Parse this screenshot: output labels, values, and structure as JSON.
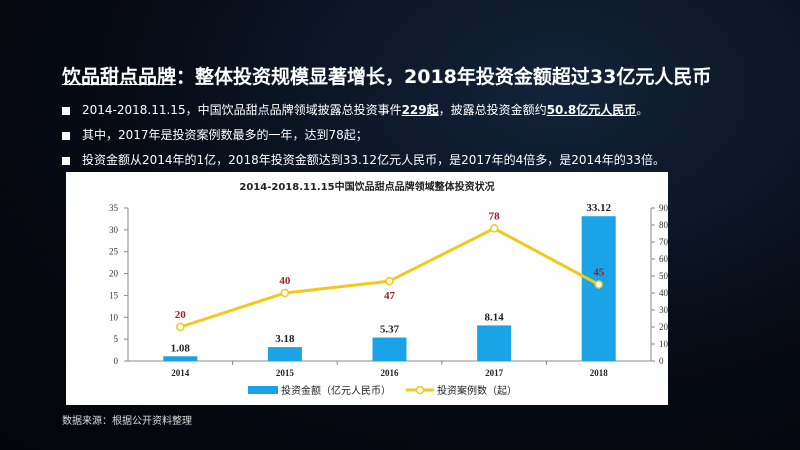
{
  "header": {
    "title_underlined": "饮品甜点品牌",
    "title_rest": "：整体投资规模显著增长，2018年投资金额超过33亿元人民币"
  },
  "bullets": [
    {
      "pre": "2014-2018.11.15，中国饮品甜点品牌领域披露总投资事件",
      "b1": "229起",
      "mid": "，披露总投资金额约",
      "b2": "50.8亿元人民币",
      "post": "。"
    },
    {
      "text": "其中，2017年是投资案例数最多的一年，达到78起；"
    },
    {
      "text": "投资金额从2014年的1亿，2018年投资金额达到33.12亿元人民币，是2017年的4倍多，是2014年的33倍。"
    }
  ],
  "source": "数据来源：根据公开资料整理",
  "chart_data": {
    "type": "bar+line",
    "title": "2014-2018.11.15中国饮品甜点品牌领域整体投资状况",
    "categories": [
      "2014",
      "2015",
      "2016",
      "2017",
      "2018"
    ],
    "series": [
      {
        "name": "投资金额（亿元人民币）",
        "type": "bar",
        "axis": "left",
        "values": [
          1.08,
          3.18,
          5.37,
          8.14,
          33.12
        ],
        "labels": [
          "1.08",
          "3.18",
          "5.37",
          "8.14",
          "33.12"
        ],
        "color": "#1aa3e6"
      },
      {
        "name": "投资案例数（起）",
        "type": "line",
        "axis": "right",
        "values": [
          20,
          40,
          47,
          78,
          45
        ],
        "labels": [
          "20",
          "40",
          "47",
          "78",
          "45"
        ],
        "color": "#f2c81a",
        "label_color": "#a01e2a"
      }
    ],
    "ylim_left": [
      0,
      35
    ],
    "yticks_left": [
      "0",
      "5",
      "10",
      "15",
      "20",
      "25",
      "30",
      "35"
    ],
    "ylim_right": [
      0,
      90
    ],
    "yticks_right": [
      "0",
      "10",
      "20",
      "30",
      "40",
      "50",
      "60",
      "70",
      "80",
      "90"
    ],
    "legend": "bottom"
  }
}
